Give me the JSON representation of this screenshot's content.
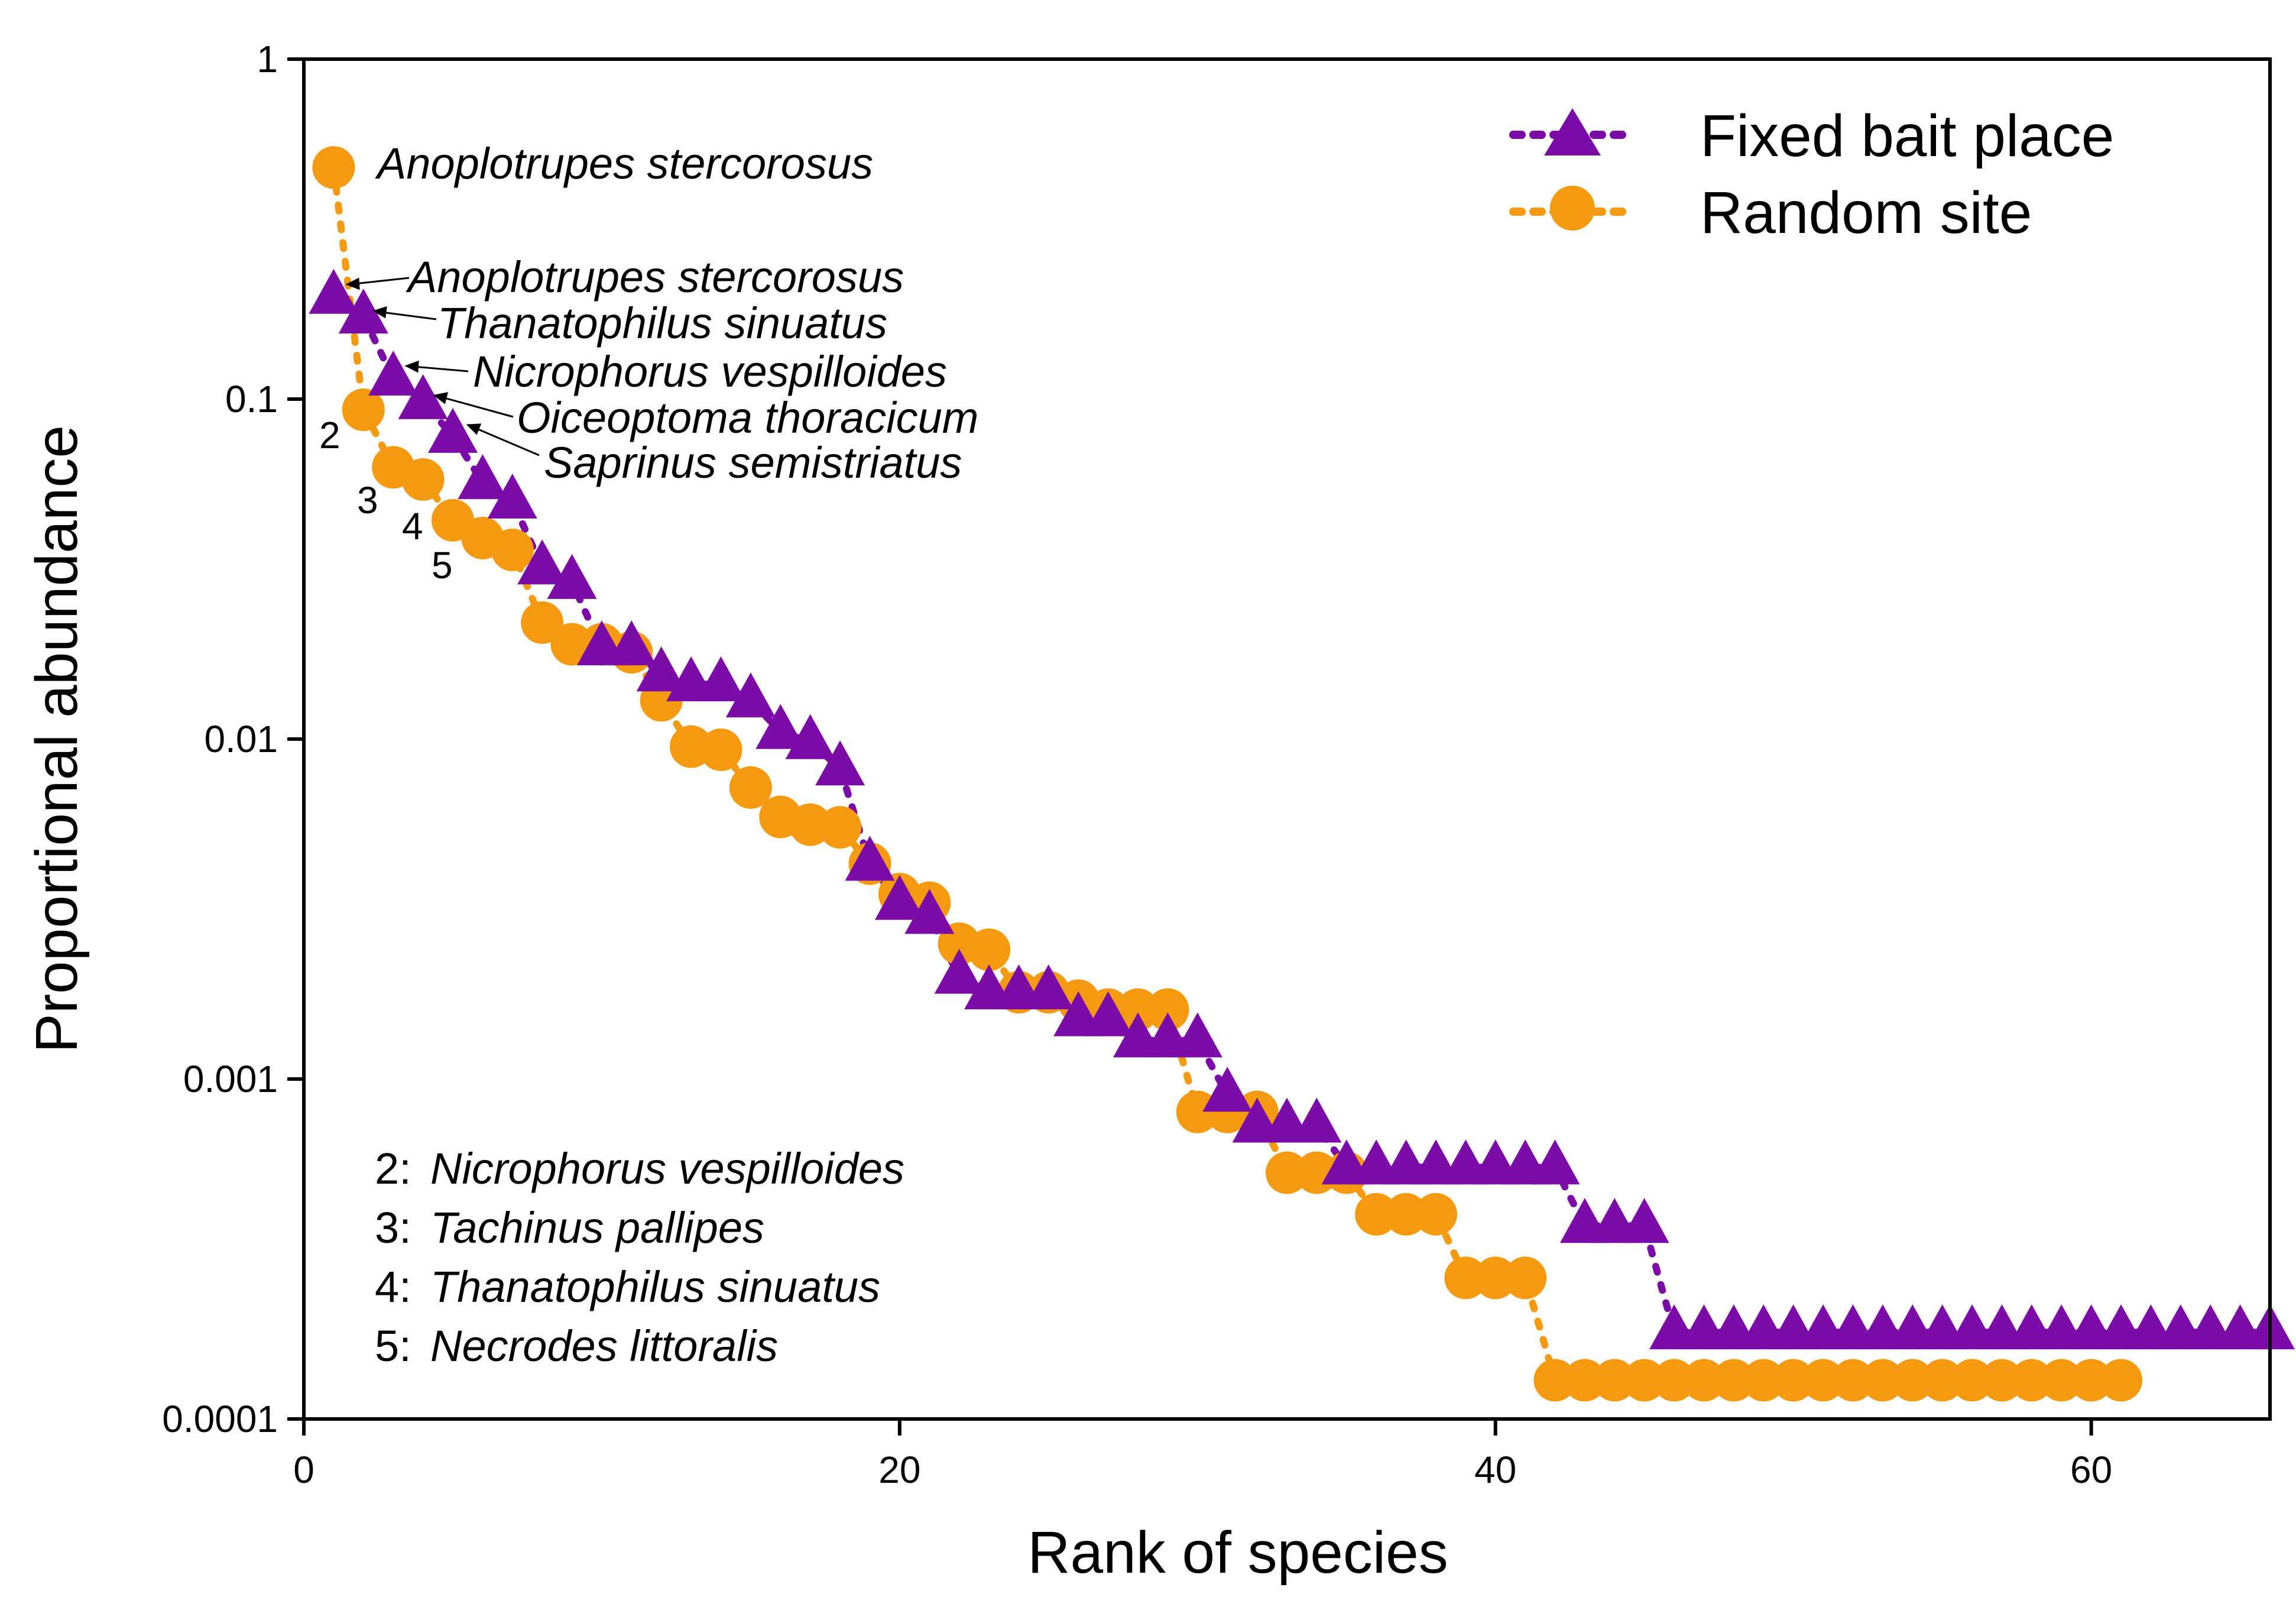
{
  "chart_data": {
    "type": "scatter",
    "xlabel": "Rank of species",
    "ylabel": "Proportional abundance",
    "xlim": [
      0,
      66
    ],
    "ylim": [
      0.0001,
      1
    ],
    "yscale": "log",
    "x_ticks": [
      0,
      20,
      40,
      60
    ],
    "x_tick_labels": [
      "0",
      "20",
      "40",
      "60"
    ],
    "y_ticks": [
      1,
      0.1,
      0.01,
      0.001,
      0.0001
    ],
    "y_tick_labels": [
      "1",
      "0.1",
      "0.01",
      "0.001",
      "0.0001"
    ],
    "legend_position": "top-right",
    "series": [
      {
        "name": "Fixed bait place",
        "marker": "triangle",
        "line": "dotted",
        "color": "#7B0CA8",
        "x": [
          1,
          2,
          3,
          4,
          5,
          6,
          7,
          8,
          9,
          10,
          11,
          12,
          13,
          14,
          15,
          16,
          17,
          18,
          19,
          20,
          21,
          22,
          23,
          24,
          25,
          26,
          27,
          28,
          29,
          30,
          31,
          32,
          33,
          34,
          35,
          36,
          37,
          38,
          39,
          40,
          41,
          42,
          43,
          44,
          45,
          46,
          47,
          48,
          49,
          50,
          51,
          52,
          53,
          54,
          55,
          56,
          57,
          58,
          59,
          60,
          61,
          62,
          63,
          64,
          65,
          66
        ],
        "values": [
          0.2,
          0.175,
          0.115,
          0.098,
          0.078,
          0.057,
          0.05,
          0.032,
          0.029,
          0.0185,
          0.0185,
          0.0155,
          0.0145,
          0.0145,
          0.013,
          0.0105,
          0.0098,
          0.0082,
          0.0043,
          0.0033,
          0.003,
          0.002,
          0.0018,
          0.0018,
          0.0018,
          0.0015,
          0.0015,
          0.0013,
          0.0013,
          0.0013,
          0.0009,
          0.00073,
          0.00073,
          0.00073,
          0.00055,
          0.00055,
          0.00055,
          0.00055,
          0.00055,
          0.00055,
          0.00055,
          0.00055,
          0.00037,
          0.00037,
          0.00037,
          0.00018,
          0.00018,
          0.00018,
          0.00018,
          0.00018,
          0.00018,
          0.00018,
          0.00018,
          0.00018,
          0.00018,
          0.00018,
          0.00018,
          0.00018,
          0.00018,
          0.00018,
          0.00018,
          0.00018,
          0.00018,
          0.00018,
          0.00018,
          0.00018
        ]
      },
      {
        "name": "Random site",
        "marker": "circle",
        "line": "dotted",
        "color": "#F59A10",
        "x": [
          1,
          2,
          3,
          4,
          5,
          6,
          7,
          8,
          9,
          10,
          11,
          12,
          13,
          14,
          15,
          16,
          17,
          18,
          19,
          20,
          21,
          22,
          23,
          24,
          25,
          26,
          27,
          28,
          29,
          30,
          31,
          32,
          33,
          34,
          35,
          36,
          37,
          38,
          39,
          40,
          41,
          42,
          43,
          44,
          45,
          46,
          47,
          48,
          49,
          50,
          51,
          52,
          53,
          54,
          55,
          56,
          57,
          58,
          59,
          60,
          61
        ],
        "values": [
          0.48,
          0.093,
          0.063,
          0.058,
          0.044,
          0.039,
          0.036,
          0.022,
          0.019,
          0.019,
          0.018,
          0.013,
          0.0095,
          0.0093,
          0.0072,
          0.0059,
          0.0056,
          0.0055,
          0.0043,
          0.0035,
          0.0033,
          0.0025,
          0.0024,
          0.0018,
          0.0018,
          0.0017,
          0.0016,
          0.0016,
          0.0016,
          0.0008,
          0.0008,
          0.0008,
          0.00053,
          0.00053,
          0.00053,
          0.0004,
          0.0004,
          0.0004,
          0.00026,
          0.00026,
          0.00026,
          0.00013,
          0.00013,
          0.00013,
          0.00013,
          0.00013,
          0.00013,
          0.00013,
          0.00013,
          0.00013,
          0.00013,
          0.00013,
          0.00013,
          0.00013,
          0.00013,
          0.00013,
          0.00013,
          0.00013,
          0.00013,
          0.00013,
          0.00013
        ]
      }
    ],
    "annotations": {
      "random_top": "Anoplotrupes stercorosus",
      "fixed_labels": [
        "Anoplotrupes stercorosus",
        "Thanatophilus sinuatus",
        "Nicrophorus vespilloides",
        "Oiceoptoma thoracicum",
        "Saprinus semistriatus"
      ],
      "rank_numbers": [
        "2",
        "3",
        "4",
        "5"
      ],
      "key": [
        {
          "num": "2:",
          "name": "Nicrophorus vespilloides"
        },
        {
          "num": "3:",
          "name": "Tachinus pallipes"
        },
        {
          "num": "4:",
          "name": "Thanatophilus sinuatus"
        },
        {
          "num": "5:",
          "name": "Necrodes littoralis"
        }
      ]
    }
  }
}
